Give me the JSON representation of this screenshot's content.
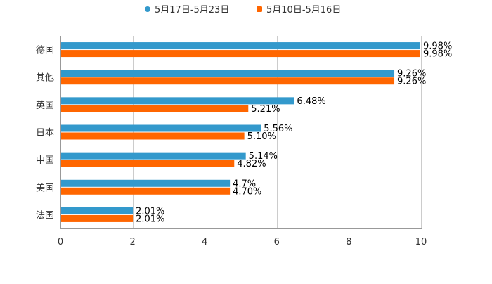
{
  "chart_data": {
    "type": "bar",
    "orientation": "horizontal",
    "categories": [
      "德国",
      "其他",
      "英国",
      "日本",
      "中国",
      "美国",
      "法国"
    ],
    "series": [
      {
        "name": "5月17日-5月23日",
        "color": "#3399cc",
        "values": [
          9.98,
          9.26,
          6.48,
          5.56,
          5.14,
          4.7,
          2.01
        ],
        "labels": [
          "9.98%",
          "9.26%",
          "6.48%",
          "5.56%",
          "5.14%",
          "4.7%",
          "2.01%"
        ]
      },
      {
        "name": "5月10日-5月16日",
        "color": "#ff6600",
        "values": [
          9.98,
          9.26,
          5.21,
          5.1,
          4.82,
          4.7,
          2.01
        ],
        "labels": [
          "9.98%",
          "9.26%",
          "5.21%",
          "5.10%",
          "4.82%",
          "4.70%",
          "2.01%"
        ]
      }
    ],
    "x_ticks": [
      "0",
      "2",
      "4",
      "6",
      "8",
      "10"
    ],
    "xlim": [
      0,
      10
    ],
    "grid": true,
    "legend_position": "top-center",
    "title": "",
    "xlabel": "",
    "ylabel": ""
  }
}
